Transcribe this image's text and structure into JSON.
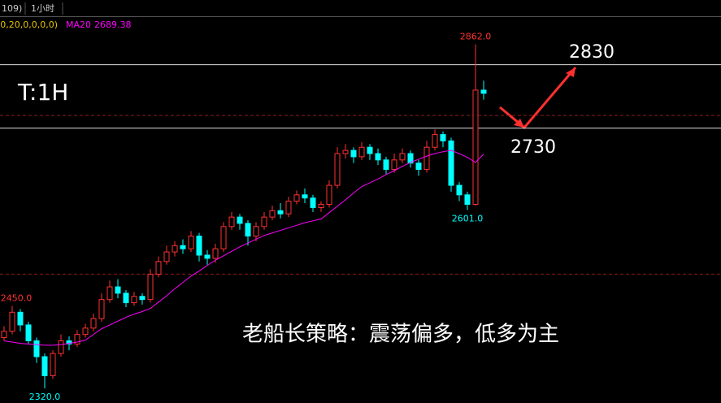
{
  "header": {
    "tabs": [
      "109)",
      "1小时"
    ],
    "indicator_params": "(0,20,0,0,0,0)"
  },
  "chart_data": {
    "type": "candlestick",
    "timeframe_label": "T:1H",
    "caption": "老船长策略：震荡偏多，低多为主",
    "ylim": [
      2297,
      2932
    ],
    "up_color": "#ff3232",
    "down_color": "#00ffff",
    "open": [
      2400,
      2410,
      2440,
      2420,
      2395,
      2370,
      2340,
      2375,
      2395,
      2390,
      2405,
      2415,
      2430,
      2460,
      2480,
      2470,
      2455,
      2465,
      2460,
      2500,
      2520,
      2535,
      2545,
      2540,
      2560,
      2530,
      2525,
      2540,
      2575,
      2590,
      2580,
      2560,
      2575,
      2590,
      2600,
      2595,
      2615,
      2625,
      2620,
      2605,
      2610,
      2640,
      2690,
      2695,
      2685,
      2700,
      2690,
      2680,
      2665,
      2680,
      2690,
      2675,
      2665,
      2700,
      2720,
      2710,
      2640,
      2625,
      2610,
      2790
    ],
    "high": [
      2418,
      2450,
      2445,
      2425,
      2400,
      2375,
      2380,
      2405,
      2402,
      2412,
      2422,
      2438,
      2470,
      2490,
      2492,
      2475,
      2472,
      2470,
      2508,
      2528,
      2545,
      2552,
      2555,
      2568,
      2565,
      2538,
      2548,
      2582,
      2598,
      2595,
      2585,
      2582,
      2598,
      2608,
      2612,
      2622,
      2632,
      2635,
      2625,
      2615,
      2648,
      2700,
      2705,
      2700,
      2708,
      2705,
      2698,
      2685,
      2690,
      2698,
      2695,
      2680,
      2710,
      2728,
      2725,
      2715,
      2645,
      2630,
      2862,
      2805
    ],
    "low": [
      2395,
      2405,
      2410,
      2390,
      2360,
      2320,
      2335,
      2370,
      2380,
      2385,
      2400,
      2410,
      2425,
      2455,
      2462,
      2448,
      2450,
      2452,
      2455,
      2495,
      2515,
      2528,
      2532,
      2535,
      2520,
      2515,
      2518,
      2535,
      2570,
      2570,
      2545,
      2552,
      2570,
      2585,
      2588,
      2590,
      2610,
      2612,
      2598,
      2598,
      2605,
      2635,
      2682,
      2675,
      2680,
      2680,
      2672,
      2658,
      2660,
      2675,
      2668,
      2655,
      2660,
      2695,
      2700,
      2630,
      2615,
      2601,
      2608,
      2775
    ],
    "close": [
      2410,
      2440,
      2420,
      2395,
      2370,
      2340,
      2375,
      2395,
      2390,
      2405,
      2415,
      2430,
      2460,
      2480,
      2470,
      2455,
      2465,
      2460,
      2500,
      2520,
      2535,
      2545,
      2540,
      2560,
      2530,
      2525,
      2540,
      2575,
      2590,
      2580,
      2560,
      2575,
      2590,
      2600,
      2595,
      2615,
      2625,
      2620,
      2605,
      2610,
      2640,
      2690,
      2695,
      2685,
      2700,
      2690,
      2680,
      2665,
      2680,
      2690,
      2675,
      2665,
      2700,
      2720,
      2710,
      2640,
      2625,
      2610,
      2790,
      2785
    ],
    "ma": {
      "name": "MA20",
      "color": "#ff00ff",
      "values": [
        2395,
        2393,
        2391,
        2390,
        2389,
        2388,
        2388,
        2389,
        2391,
        2393,
        2396,
        2405,
        2414,
        2420,
        2426,
        2432,
        2437,
        2441,
        2446,
        2456,
        2466,
        2477,
        2487,
        2497,
        2505,
        2514,
        2522,
        2529,
        2536,
        2543,
        2549,
        2555,
        2561,
        2565,
        2569,
        2573,
        2577,
        2581,
        2584,
        2587,
        2597,
        2607,
        2617,
        2628,
        2638,
        2644,
        2650,
        2657,
        2663,
        2670,
        2676,
        2681,
        2686,
        2690,
        2693,
        2695,
        2690,
        2684,
        2676,
        2689.38
      ]
    },
    "extreme_labels": [
      {
        "value": 2862,
        "label": "2862.0"
      },
      {
        "value": 2601,
        "label": "2601.0"
      },
      {
        "value": 2450,
        "label": "2450.0"
      },
      {
        "value": 2320,
        "label": "2320.0"
      }
    ],
    "levels": [
      2830,
      2730
    ],
    "dashed_levels": [
      2750,
      2500
    ]
  }
}
